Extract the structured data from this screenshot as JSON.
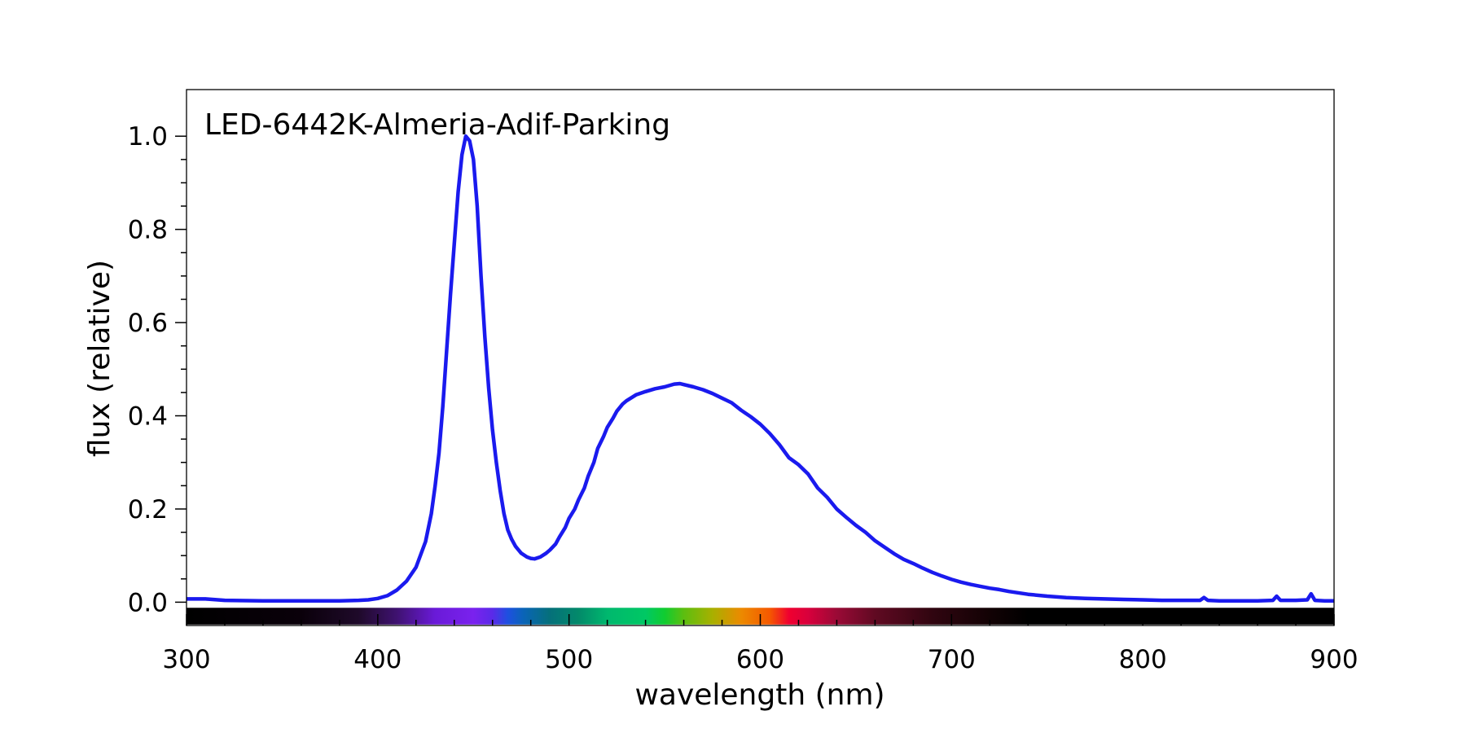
{
  "chart_data": {
    "type": "line",
    "title": "LED-6442K-Almeria-Adif-Parking",
    "xlabel": "wavelength (nm)",
    "ylabel": "flux (relative)",
    "xlim": [
      300,
      900
    ],
    "ylim": [
      -0.05,
      1.1
    ],
    "x_ticks": [
      300,
      400,
      500,
      600,
      700,
      800,
      900
    ],
    "x_tick_labels": [
      "300",
      "400",
      "500",
      "600",
      "700",
      "800",
      "900"
    ],
    "y_ticks": [
      0.0,
      0.2,
      0.4,
      0.6,
      0.8,
      1.0
    ],
    "y_tick_labels": [
      "0.0",
      "0.2",
      "0.4",
      "0.6",
      "0.8",
      "1.0"
    ],
    "grid": false,
    "legend": "none",
    "colors": {
      "line": "#1a1aee"
    },
    "series": [
      {
        "x": [
          300,
          310,
          320,
          340,
          360,
          380,
          390,
          395,
          400,
          405,
          410,
          415,
          420,
          425,
          428,
          430,
          432,
          434,
          436,
          438,
          440,
          442,
          444,
          446,
          448,
          450,
          452,
          454,
          456,
          458,
          460,
          462,
          464,
          466,
          468,
          470,
          472,
          475,
          478,
          480,
          482,
          485,
          488,
          490,
          493,
          495,
          498,
          500,
          503,
          505,
          508,
          510,
          513,
          515,
          518,
          520,
          523,
          525,
          528,
          530,
          535,
          540,
          545,
          550,
          555,
          558,
          560,
          565,
          570,
          575,
          580,
          585,
          590,
          595,
          600,
          605,
          610,
          615,
          620,
          625,
          630,
          635,
          640,
          645,
          650,
          655,
          660,
          665,
          670,
          675,
          680,
          685,
          690,
          695,
          700,
          705,
          710,
          715,
          720,
          725,
          730,
          740,
          750,
          760,
          770,
          780,
          790,
          800,
          810,
          820,
          830,
          832,
          834,
          840,
          850,
          860,
          868,
          870,
          872,
          880,
          886,
          888,
          890,
          895,
          900
        ],
        "y": [
          0.007,
          0.007,
          0.004,
          0.003,
          0.003,
          0.003,
          0.004,
          0.005,
          0.008,
          0.014,
          0.026,
          0.045,
          0.075,
          0.13,
          0.19,
          0.25,
          0.32,
          0.42,
          0.54,
          0.66,
          0.77,
          0.88,
          0.96,
          1.0,
          0.99,
          0.95,
          0.85,
          0.7,
          0.57,
          0.46,
          0.37,
          0.3,
          0.24,
          0.19,
          0.155,
          0.135,
          0.12,
          0.105,
          0.097,
          0.094,
          0.093,
          0.097,
          0.105,
          0.112,
          0.125,
          0.14,
          0.16,
          0.18,
          0.2,
          0.22,
          0.245,
          0.27,
          0.3,
          0.33,
          0.355,
          0.375,
          0.395,
          0.41,
          0.425,
          0.432,
          0.445,
          0.452,
          0.458,
          0.462,
          0.468,
          0.469,
          0.467,
          0.462,
          0.456,
          0.448,
          0.438,
          0.428,
          0.412,
          0.398,
          0.382,
          0.362,
          0.338,
          0.31,
          0.295,
          0.275,
          0.245,
          0.225,
          0.2,
          0.182,
          0.165,
          0.15,
          0.132,
          0.118,
          0.104,
          0.092,
          0.083,
          0.073,
          0.064,
          0.056,
          0.049,
          0.043,
          0.038,
          0.034,
          0.03,
          0.027,
          0.023,
          0.017,
          0.013,
          0.01,
          0.008,
          0.007,
          0.006,
          0.005,
          0.004,
          0.004,
          0.004,
          0.01,
          0.004,
          0.003,
          0.003,
          0.003,
          0.004,
          0.013,
          0.004,
          0.004,
          0.005,
          0.018,
          0.004,
          0.003,
          0.003
        ]
      }
    ],
    "spectrum_strip": {
      "stops": [
        {
          "x": 300,
          "color": "#000000"
        },
        {
          "x": 360,
          "color": "#0a000a"
        },
        {
          "x": 390,
          "color": "#1f0a2a"
        },
        {
          "x": 410,
          "color": "#3f1270"
        },
        {
          "x": 430,
          "color": "#6a1ad8"
        },
        {
          "x": 450,
          "color": "#7a22ee"
        },
        {
          "x": 460,
          "color": "#5a2ae8"
        },
        {
          "x": 468,
          "color": "#1e50e0"
        },
        {
          "x": 476,
          "color": "#0a64b8"
        },
        {
          "x": 490,
          "color": "#05707a"
        },
        {
          "x": 505,
          "color": "#038a6a"
        },
        {
          "x": 520,
          "color": "#00b86e"
        },
        {
          "x": 540,
          "color": "#00c864"
        },
        {
          "x": 550,
          "color": "#10cc30"
        },
        {
          "x": 560,
          "color": "#5cbe10"
        },
        {
          "x": 575,
          "color": "#a8b000"
        },
        {
          "x": 590,
          "color": "#ec8a00"
        },
        {
          "x": 605,
          "color": "#f45800"
        },
        {
          "x": 615,
          "color": "#f00030"
        },
        {
          "x": 625,
          "color": "#d8003c"
        },
        {
          "x": 640,
          "color": "#9a0a36"
        },
        {
          "x": 660,
          "color": "#600a22"
        },
        {
          "x": 690,
          "color": "#300510"
        },
        {
          "x": 720,
          "color": "#120204"
        },
        {
          "x": 740,
          "color": "#000000"
        },
        {
          "x": 900,
          "color": "#000000"
        }
      ]
    }
  }
}
